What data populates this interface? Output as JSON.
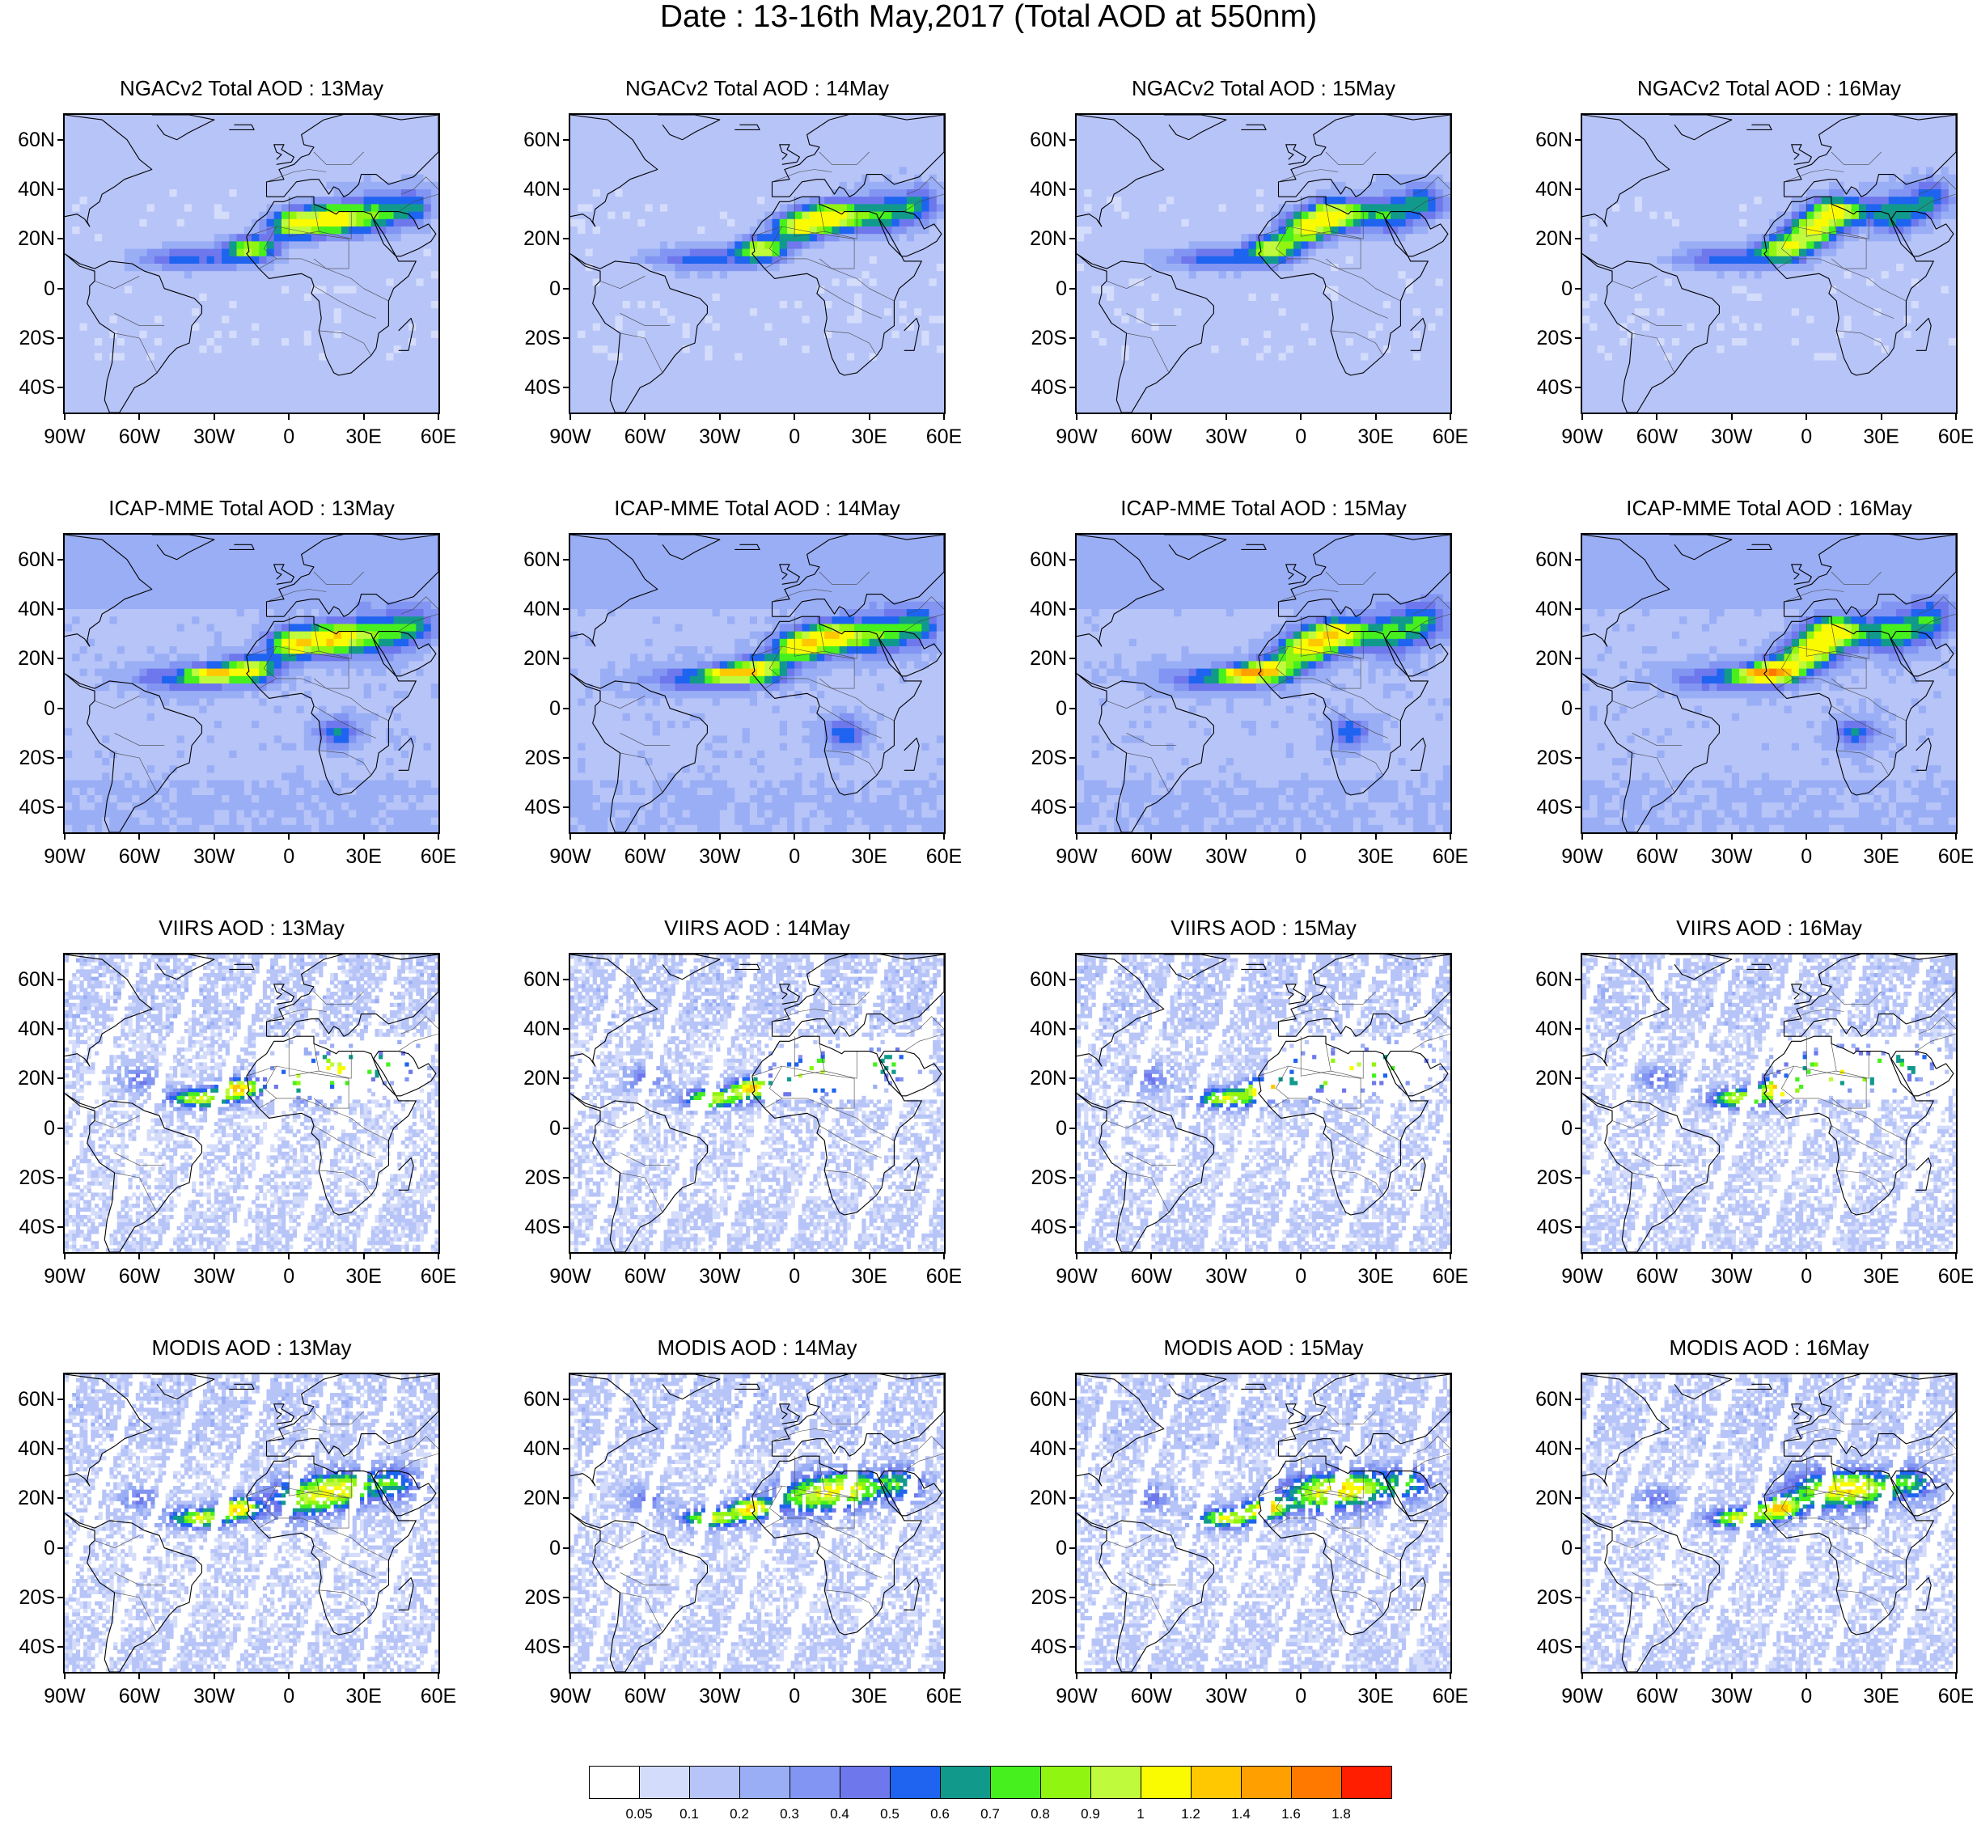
{
  "figure_title": "Date : 13-16th May,2017 (Total AOD at 550nm)",
  "latitude_labels": [
    "60N",
    "40N",
    "20N",
    "0",
    "20S",
    "40S"
  ],
  "longitude_labels": [
    "90W",
    "60W",
    "30W",
    "0",
    "30E",
    "60E"
  ],
  "map_extent": {
    "lon": [
      -90,
      60
    ],
    "lat": [
      -50,
      70
    ]
  },
  "lat_tick_values": [
    60,
    40,
    20,
    0,
    -20,
    -40
  ],
  "lon_tick_values": [
    -90,
    -60,
    -30,
    0,
    30,
    60
  ],
  "rows": [
    {
      "source": "NGACv2",
      "panels": [
        {
          "title": "NGACv2 Total AOD : 13May",
          "day": 13
        },
        {
          "title": "NGACv2 Total AOD : 14May",
          "day": 14
        },
        {
          "title": "NGACv2 Total AOD : 15May",
          "day": 15
        },
        {
          "title": "NGACv2 Total AOD : 16May",
          "day": 16
        }
      ]
    },
    {
      "source": "ICAP-MME",
      "panels": [
        {
          "title": "ICAP-MME Total AOD : 13May",
          "day": 13
        },
        {
          "title": "ICAP-MME Total AOD : 14May",
          "day": 14
        },
        {
          "title": "ICAP-MME Total AOD : 15May",
          "day": 15
        },
        {
          "title": "ICAP-MME Total AOD : 16May",
          "day": 16
        }
      ]
    },
    {
      "source": "VIIRS",
      "panels": [
        {
          "title": "VIIRS AOD : 13May",
          "day": 13
        },
        {
          "title": "VIIRS AOD : 14May",
          "day": 14
        },
        {
          "title": "VIIRS AOD : 15May",
          "day": 15
        },
        {
          "title": "VIIRS AOD : 16May",
          "day": 16
        }
      ]
    },
    {
      "source": "MODIS",
      "panels": [
        {
          "title": "MODIS AOD : 13May",
          "day": 13
        },
        {
          "title": "MODIS AOD : 14May",
          "day": 14
        },
        {
          "title": "MODIS AOD : 15May",
          "day": 15
        },
        {
          "title": "MODIS AOD : 16May",
          "day": 16
        }
      ]
    }
  ],
  "colorbar": {
    "colors": [
      "#ffffff",
      "#d4dcfb",
      "#b7c4f8",
      "#9aaef5",
      "#8295f2",
      "#6e78ec",
      "#1e64f0",
      "#119a8c",
      "#46f01e",
      "#90f510",
      "#c0fa3c",
      "#fafa00",
      "#ffc800",
      "#ffa000",
      "#ff7800",
      "#ff1e00"
    ],
    "labels": [
      "0.05",
      "0.1",
      "0.2",
      "0.3",
      "0.4",
      "0.5",
      "0.6",
      "0.7",
      "0.8",
      "0.9",
      "1",
      "1.2",
      "1.4",
      "1.6",
      "1.8"
    ]
  }
}
